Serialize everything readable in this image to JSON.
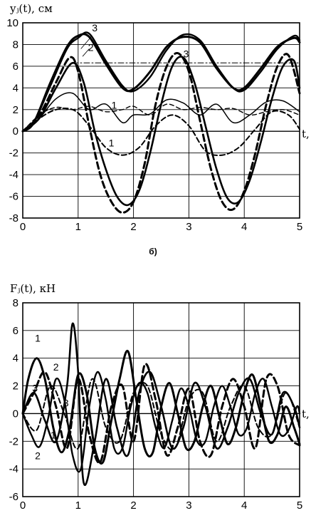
{
  "chart_data": [
    {
      "type": "line",
      "ylabel": "yⱼ(t), см",
      "xlabel": "t,",
      "xlim": [
        0,
        5
      ],
      "ylim": [
        -8,
        10
      ],
      "xticks": [
        "0",
        "1",
        "2",
        "3",
        "4",
        "5"
      ],
      "yticks": [
        "-8",
        "-6",
        "-4",
        "-2",
        "0",
        "2",
        "4",
        "6",
        "8",
        "10"
      ],
      "grid": true,
      "subcaption": "б)",
      "curve_labels": [
        "3",
        "2",
        "3",
        "1",
        "1"
      ],
      "series": [
        {
          "style": "thick-solid",
          "x": [
            0,
            0.2,
            0.5,
            0.8,
            1.0,
            1.2,
            1.5,
            1.8,
            2.0,
            2.3,
            2.6,
            2.9,
            3.2,
            3.5,
            3.8,
            4.0,
            4.3,
            4.6,
            4.9,
            5.0
          ],
          "y": [
            0,
            0.8,
            4.5,
            7.8,
            8.8,
            8.7,
            6.2,
            4.0,
            3.9,
            5.5,
            7.8,
            8.7,
            8.2,
            5.8,
            4.0,
            4.0,
            5.8,
            7.8,
            8.6,
            8.2
          ]
        },
        {
          "style": "thick-solid-2",
          "x": [
            0,
            0.2,
            0.5,
            0.8,
            1.0,
            1.2,
            1.5,
            1.8,
            2.0,
            2.3,
            2.6,
            2.9,
            3.2,
            3.5,
            3.8,
            4.0,
            4.3,
            4.6,
            4.9,
            5.0
          ],
          "y": [
            0,
            0.8,
            4.2,
            7.6,
            8.6,
            9.0,
            6.5,
            4.2,
            3.7,
            5.0,
            7.5,
            8.9,
            8.4,
            6.0,
            4.0,
            3.8,
            5.5,
            7.6,
            8.8,
            8.4
          ]
        },
        {
          "style": "thin-solid",
          "x": [
            0,
            0.3,
            0.6,
            0.9,
            1.2,
            1.5,
            1.8,
            2.0,
            2.3,
            2.6,
            2.9,
            3.2,
            3.5,
            3.8,
            4.1,
            4.4,
            4.7,
            5.0
          ],
          "y": [
            0,
            1.2,
            3.0,
            3.5,
            2.0,
            2.5,
            0.8,
            1.5,
            1.6,
            2.9,
            2.6,
            1.5,
            2.5,
            0.8,
            1.5,
            2.7,
            2.8,
            1.8
          ]
        },
        {
          "style": "thin-dashed",
          "x": [
            0,
            0.3,
            0.6,
            0.9,
            1.2,
            1.5,
            1.8,
            2.0,
            2.3,
            2.6,
            2.9,
            3.2,
            3.5,
            3.8,
            4.1,
            4.4,
            4.7,
            5.0
          ],
          "y": [
            0,
            1.5,
            2.2,
            2.0,
            2.3,
            1.8,
            2.0,
            2.3,
            1.5,
            2.5,
            2.0,
            2.2,
            2.0,
            2.1,
            1.5,
            1.8,
            2.0,
            1.5
          ]
        },
        {
          "style": "dash-dot",
          "x": [
            0.9,
            5.0
          ],
          "y": [
            6.3,
            6.3
          ]
        },
        {
          "style": "thick-dashed",
          "x": [
            0,
            0.3,
            0.6,
            0.85,
            1.0,
            1.2,
            1.4,
            1.6,
            1.8,
            2.0,
            2.2,
            2.4,
            2.6,
            2.8,
            3.0,
            3.2,
            3.4,
            3.6,
            3.8,
            4.0,
            4.2,
            4.4,
            4.6,
            4.8,
            5.0
          ],
          "y": [
            0,
            1.5,
            4.5,
            6.8,
            5.5,
            0.5,
            -4.0,
            -6.5,
            -7.5,
            -6.5,
            -3.0,
            2.5,
            6.0,
            7.2,
            5.5,
            1.0,
            -3.5,
            -6.5,
            -7.2,
            -5.5,
            -2.0,
            2.5,
            6.0,
            7.0,
            3.5
          ]
        },
        {
          "style": "thick-solid-3",
          "x": [
            0,
            0.3,
            0.6,
            0.9,
            1.1,
            1.3,
            1.5,
            1.7,
            1.9,
            2.1,
            2.3,
            2.5,
            2.7,
            2.9,
            3.1,
            3.3,
            3.5,
            3.7,
            3.9,
            4.1,
            4.3,
            4.5,
            4.7,
            4.9,
            5.0
          ],
          "y": [
            0,
            1.2,
            4.0,
            6.3,
            4.5,
            0.0,
            -3.5,
            -6.0,
            -6.8,
            -5.5,
            -2.0,
            2.5,
            6.0,
            6.8,
            4.5,
            0.5,
            -3.5,
            -6.2,
            -6.5,
            -4.5,
            -1.0,
            3.0,
            6.0,
            6.5,
            4.0
          ]
        },
        {
          "style": "med-dashed",
          "x": [
            0,
            0.5,
            0.9,
            1.2,
            1.5,
            1.8,
            2.1,
            2.4,
            2.7,
            3.0,
            3.3,
            3.6,
            3.9,
            4.2,
            4.5,
            4.8,
            5.0
          ],
          "y": [
            0,
            1.8,
            2.0,
            0.5,
            -1.5,
            -2.2,
            -1.5,
            0.5,
            1.5,
            0.5,
            -1.8,
            -2.2,
            -1.5,
            0.2,
            1.8,
            1.5,
            0.2
          ]
        }
      ]
    },
    {
      "type": "line",
      "ylabel": "Fⱼ(t), кН",
      "xlabel": "t,",
      "xlim": [
        0,
        5
      ],
      "ylim": [
        -6,
        8
      ],
      "xticks": [
        "0",
        "1",
        "2",
        "3",
        "4",
        "5"
      ],
      "yticks": [
        "-6",
        "-4",
        "-2",
        "0",
        "2",
        "4",
        "6",
        "8"
      ],
      "grid": true,
      "curve_labels": [
        "1",
        "2",
        "3",
        "3",
        "1",
        "2"
      ],
      "series": [
        {
          "style": "thick-solid",
          "x": [
            0,
            0.1,
            0.25,
            0.4,
            0.55,
            0.7,
            0.85,
            1.0,
            1.15,
            1.3,
            1.45,
            1.6,
            1.75,
            1.9,
            2.05,
            2.2,
            2.35,
            2.5,
            2.65,
            2.8,
            2.95,
            3.1,
            3.25,
            3.4,
            3.55,
            3.7,
            3.85,
            4.0,
            4.15,
            4.3,
            4.45,
            4.6,
            4.75,
            4.9,
            5.0
          ],
          "y": [
            0,
            2.5,
            4.0,
            2.5,
            -1.0,
            -2.8,
            -1.0,
            2.8,
            1.5,
            -2.5,
            -3.5,
            -0.5,
            2.5,
            4.5,
            1.0,
            -2.5,
            -2.8,
            0.5,
            2.2,
            0.0,
            -2.5,
            -2.0,
            0.5,
            2.0,
            -0.2,
            -2.2,
            -1.0,
            1.5,
            2.8,
            0.5,
            -2.0,
            -1.5,
            0.5,
            -1.0,
            -2.2
          ]
        },
        {
          "style": "thick-solid-2",
          "x": [
            0,
            0.15,
            0.3,
            0.45,
            0.6,
            0.75,
            0.9,
            1.05,
            1.2,
            1.35,
            1.5,
            1.65,
            1.8,
            1.95,
            2.1,
            2.25,
            2.4,
            2.55,
            2.7,
            2.85,
            3.0,
            3.15,
            3.3,
            3.45,
            3.6,
            3.75,
            3.9,
            4.05,
            4.2,
            4.35,
            4.5,
            4.65,
            4.8,
            4.95,
            5.0
          ],
          "y": [
            0,
            -1.5,
            -2.4,
            -0.5,
            2.5,
            1.0,
            -3.0,
            -4.0,
            0.5,
            3.0,
            1.0,
            -2.5,
            -2.5,
            0.5,
            2.2,
            1.5,
            -1.0,
            -2.5,
            -0.5,
            1.8,
            0.5,
            -2.0,
            -2.0,
            0.5,
            2.0,
            0.5,
            -1.5,
            -1.0,
            1.5,
            2.5,
            0.5,
            -1.5,
            -1.2,
            0.5,
            0.0
          ]
        },
        {
          "style": "thick-solid-3",
          "x": [
            0,
            0.2,
            0.4,
            0.6,
            0.8,
            0.9,
            1.0,
            1.1,
            1.3,
            1.5,
            1.7,
            1.9,
            2.1,
            2.3,
            2.5,
            2.7,
            2.9,
            3.1,
            3.3,
            3.5,
            3.7,
            3.9,
            4.1,
            4.3,
            4.5,
            4.7,
            4.9,
            5.0
          ],
          "y": [
            0,
            1.5,
            -0.5,
            -2.0,
            2.0,
            6.5,
            3.0,
            -5.0,
            -2.0,
            2.5,
            -1.0,
            -3.0,
            1.5,
            3.0,
            0.5,
            -2.5,
            -1.0,
            2.2,
            0.5,
            -2.5,
            -1.0,
            1.5,
            2.5,
            0.0,
            -1.5,
            1.5,
            0.5,
            -1.0
          ]
        },
        {
          "style": "thick-dashed",
          "x": [
            0,
            0.2,
            0.4,
            0.6,
            0.8,
            1.0,
            1.2,
            1.4,
            1.6,
            1.8,
            2.0,
            2.2,
            2.4,
            2.6,
            2.8,
            3.0,
            3.2,
            3.4,
            3.6,
            3.8,
            4.0,
            4.2,
            4.4,
            4.6,
            4.8,
            5.0
          ],
          "y": [
            0,
            1.5,
            3.0,
            0.5,
            -2.5,
            2.5,
            -1.5,
            -3.5,
            0.5,
            2.0,
            -2.0,
            3.5,
            1.0,
            -3.0,
            -1.0,
            1.8,
            -2.0,
            -3.0,
            0.5,
            2.5,
            0.5,
            -2.5,
            2.5,
            2.0,
            -1.5,
            -2.3
          ]
        },
        {
          "style": "med-dashed",
          "x": [
            0,
            0.25,
            0.5,
            0.75,
            1.0,
            1.25,
            1.5,
            1.75,
            2.0,
            2.25,
            2.5,
            2.75,
            3.0,
            3.25,
            3.5,
            3.75,
            4.0,
            4.25,
            4.5,
            4.75,
            5.0
          ],
          "y": [
            0,
            -1.2,
            2.0,
            0.0,
            -2.5,
            2.5,
            -1.0,
            -2.0,
            1.5,
            2.0,
            -1.5,
            -2.5,
            1.0,
            1.5,
            -2.0,
            0.5,
            2.0,
            -1.0,
            -1.5,
            1.5,
            -1.0
          ]
        }
      ]
    }
  ]
}
